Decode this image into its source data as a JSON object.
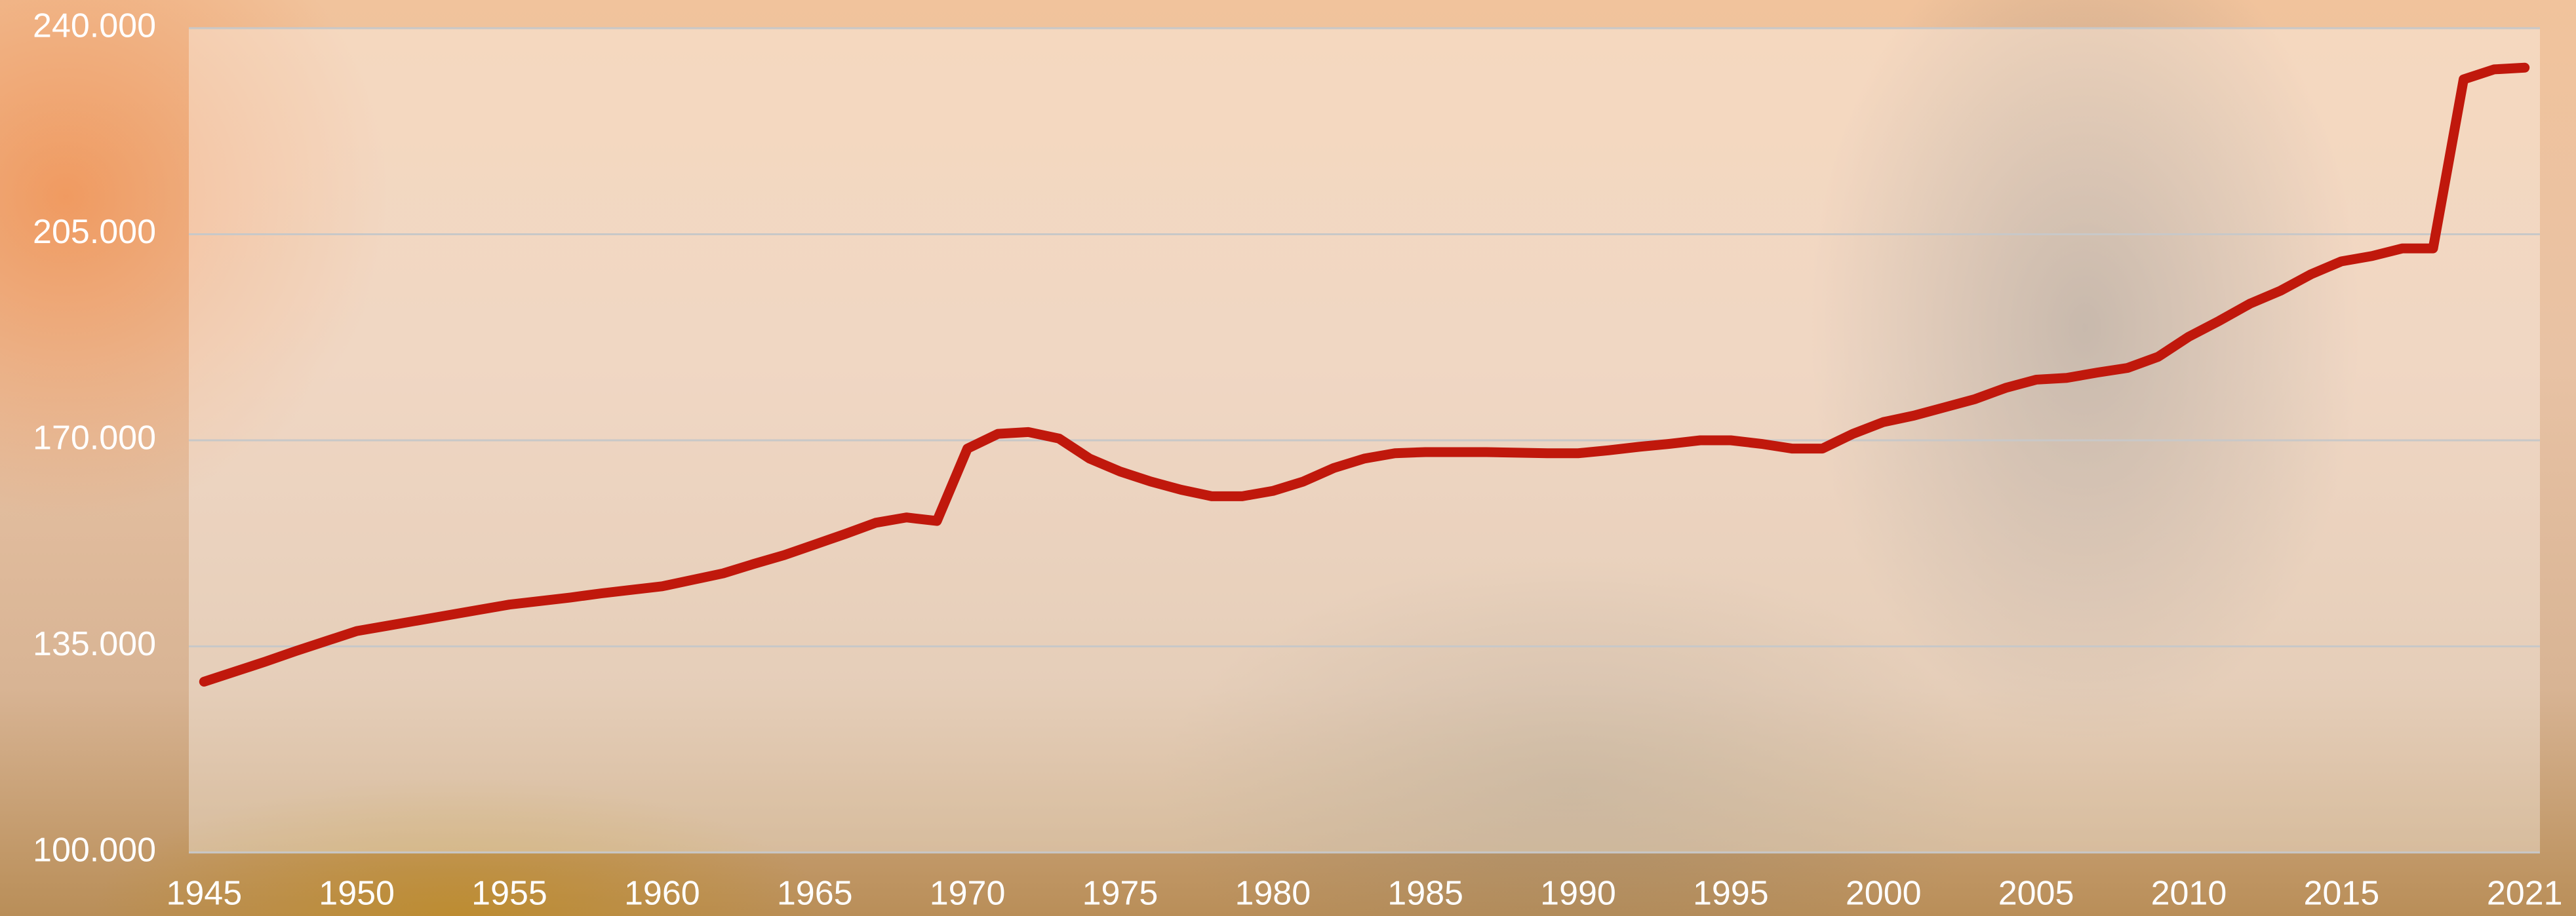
{
  "chart_data": {
    "type": "line",
    "x": [
      1945,
      1946,
      1947,
      1948,
      1949,
      1950,
      1951,
      1952,
      1953,
      1954,
      1955,
      1956,
      1957,
      1958,
      1959,
      1960,
      1961,
      1962,
      1963,
      1964,
      1965,
      1966,
      1967,
      1968,
      1969,
      1970,
      1971,
      1972,
      1973,
      1974,
      1975,
      1976,
      1977,
      1978,
      1979,
      1980,
      1981,
      1982,
      1983,
      1984,
      1985,
      1986,
      1987,
      1988,
      1989,
      1990,
      1991,
      1992,
      1993,
      1994,
      1995,
      1996,
      1997,
      1998,
      1999,
      2000,
      2001,
      2002,
      2003,
      2004,
      2005,
      2006,
      2007,
      2008,
      2009,
      2010,
      2011,
      2012,
      2013,
      2014,
      2015,
      2016,
      2017,
      2018,
      2019,
      2020,
      2021
    ],
    "series": [
      {
        "color": "#c0180c",
        "values": [
          129000,
          130700,
          132400,
          134200,
          135900,
          137600,
          138500,
          139400,
          140300,
          141200,
          142100,
          142700,
          143300,
          144000,
          144600,
          145200,
          146300,
          147400,
          149000,
          150500,
          152300,
          154100,
          156000,
          156900,
          156300,
          168600,
          171100,
          171400,
          170300,
          166900,
          164700,
          163000,
          161600,
          160500,
          160500,
          161400,
          163000,
          165300,
          166900,
          167800,
          168000,
          168000,
          168000,
          167900,
          167800,
          167800,
          168300,
          168900,
          169400,
          170000,
          170000,
          169400,
          168600,
          168600,
          171100,
          173100,
          174200,
          175600,
          177000,
          178900,
          180300,
          180600,
          181500,
          182300,
          184200,
          187600,
          190300,
          193200,
          195400,
          198200,
          200400,
          201300,
          202600,
          202600,
          231300,
          233000,
          233300
        ]
      }
    ],
    "xlim": [
      1944.5,
      2021.5
    ],
    "xticks": [
      1945,
      1950,
      1955,
      1960,
      1965,
      1970,
      1975,
      1980,
      1985,
      1990,
      1995,
      2000,
      2005,
      2010,
      2015,
      2021
    ],
    "ylim": [
      100000,
      240000
    ],
    "yticks": [
      {
        "value": 100000,
        "label": "100.000"
      },
      {
        "value": 135000,
        "label": "135.000"
      },
      {
        "value": 170000,
        "label": "170.000"
      },
      {
        "value": 205000,
        "label": "205.000"
      },
      {
        "value": 240000,
        "label": "240.000"
      }
    ],
    "grid": true
  }
}
